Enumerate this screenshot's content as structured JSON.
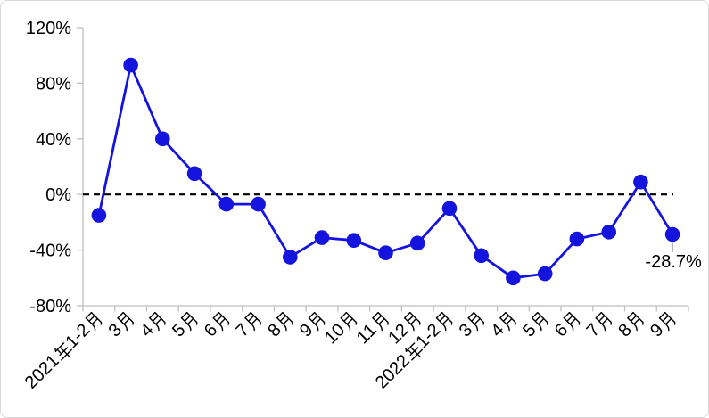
{
  "frame": {
    "background_color": "#FFFFFF",
    "border_color": "#D9D9D9"
  },
  "chart_data": {
    "type": "line",
    "title": "",
    "xlabel": "",
    "ylabel": "",
    "legend": "none",
    "grid": "off",
    "categories": [
      "2021年1-2月",
      "3月",
      "4月",
      "5月",
      "6月",
      "7月",
      "8月",
      "9月",
      "10月",
      "11月",
      "12月",
      "2022年1-2月",
      "3月",
      "4月",
      "5月",
      "6月",
      "7月",
      "8月",
      "9月"
    ],
    "values": [
      -15,
      93,
      40,
      15,
      -7,
      -7,
      -45,
      -31,
      -33,
      -42,
      -35,
      -10,
      -44,
      -60,
      -57,
      -32,
      -27,
      9,
      -28.7
    ],
    "ylim": [
      -80,
      120
    ],
    "y_ticks": [
      120,
      80,
      40,
      0,
      -40,
      -80
    ],
    "y_tick_labels": [
      "120%",
      "80%",
      "40%",
      "0%",
      "-40%",
      "-80%"
    ],
    "zero_line": {
      "style": "dashed",
      "color": "#000000"
    },
    "last_point_annotation": "-28.7%",
    "line_color": "#1414DE",
    "marker": "circle",
    "axis_color": "#BFBFBF",
    "text_color": "#000000",
    "annotation_leader_color": "#A6A6A6"
  }
}
